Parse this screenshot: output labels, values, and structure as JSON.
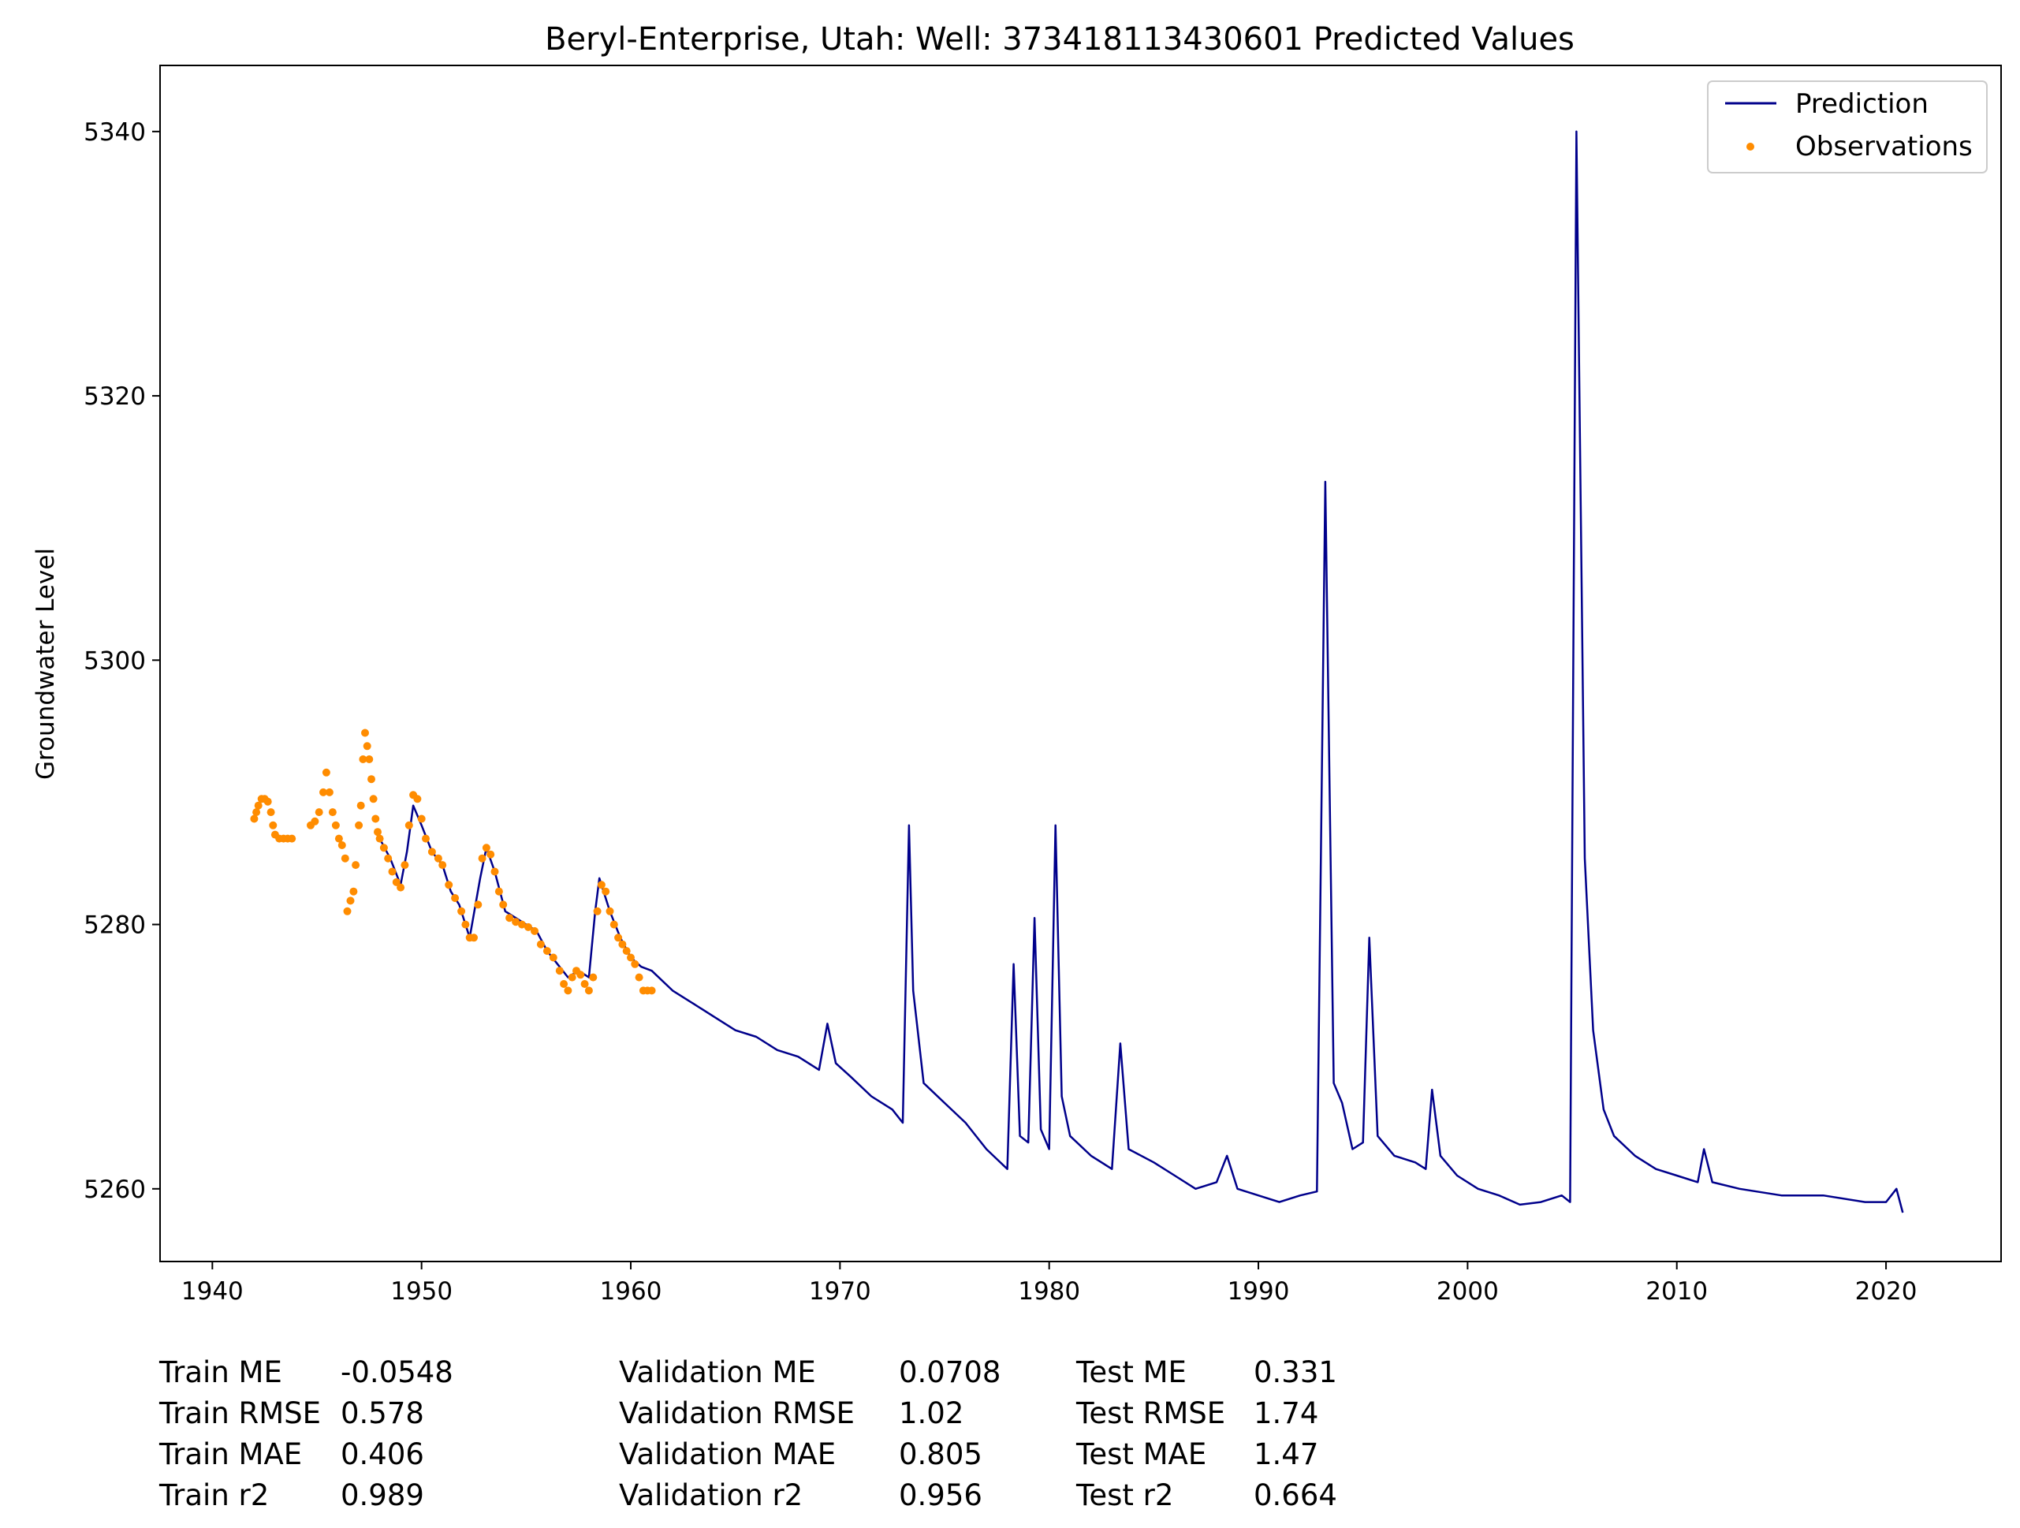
{
  "chart_data": {
    "type": "line",
    "title": "Beryl-Enterprise, Utah: Well: 373418113430601 Predicted Values",
    "xlabel": "",
    "ylabel": "Groundwater Level",
    "xlim": [
      1937.5,
      2025.5
    ],
    "ylim": [
      5254.5,
      5345
    ],
    "x_ticks": [
      1940,
      1950,
      1960,
      1970,
      1980,
      1990,
      2000,
      2010,
      2020
    ],
    "y_ticks": [
      5260,
      5280,
      5300,
      5320,
      5340
    ],
    "legend": {
      "placement": "top-right",
      "entries": [
        "Prediction",
        "Observations"
      ]
    },
    "colors": {
      "prediction": "#00008b",
      "observations": "#ff8c00",
      "axis": "#000000"
    },
    "series": [
      {
        "name": "Prediction",
        "style": "line",
        "points": [
          [
            1948.0,
            5286.5
          ],
          [
            1948.5,
            5285.0
          ],
          [
            1949.0,
            5283.0
          ],
          [
            1949.3,
            5285.5
          ],
          [
            1949.6,
            5289.0
          ],
          [
            1950.0,
            5287.5
          ],
          [
            1950.5,
            5285.5
          ],
          [
            1951.0,
            5284.5
          ],
          [
            1951.4,
            5282.5
          ],
          [
            1951.8,
            5281.5
          ],
          [
            1952.3,
            5279.0
          ],
          [
            1952.8,
            5283.5
          ],
          [
            1953.1,
            5285.8
          ],
          [
            1953.5,
            5284.0
          ],
          [
            1954.0,
            5281.0
          ],
          [
            1954.5,
            5280.5
          ],
          [
            1955.0,
            5280.0
          ],
          [
            1955.5,
            5279.5
          ],
          [
            1956.0,
            5278.0
          ],
          [
            1956.5,
            5277.0
          ],
          [
            1957.0,
            5276.0
          ],
          [
            1957.5,
            5276.5
          ],
          [
            1958.0,
            5276.0
          ],
          [
            1958.3,
            5281.0
          ],
          [
            1958.5,
            5283.5
          ],
          [
            1959.0,
            5281.0
          ],
          [
            1959.5,
            5279.0
          ],
          [
            1960.0,
            5277.5
          ],
          [
            1960.5,
            5276.8
          ],
          [
            1961.0,
            5276.5
          ],
          [
            1962.0,
            5275.0
          ],
          [
            1963.0,
            5274.0
          ],
          [
            1964.0,
            5273.0
          ],
          [
            1965.0,
            5272.0
          ],
          [
            1966.0,
            5271.5
          ],
          [
            1967.0,
            5270.5
          ],
          [
            1968.0,
            5270.0
          ],
          [
            1969.0,
            5269.0
          ],
          [
            1969.4,
            5272.5
          ],
          [
            1969.8,
            5269.5
          ],
          [
            1970.5,
            5268.5
          ],
          [
            1971.5,
            5267.0
          ],
          [
            1972.5,
            5266.0
          ],
          [
            1973.0,
            5265.0
          ],
          [
            1973.3,
            5287.5
          ],
          [
            1973.5,
            5275.0
          ],
          [
            1974.0,
            5268.0
          ],
          [
            1975.0,
            5266.5
          ],
          [
            1976.0,
            5265.0
          ],
          [
            1977.0,
            5263.0
          ],
          [
            1978.0,
            5261.5
          ],
          [
            1978.3,
            5277.0
          ],
          [
            1978.6,
            5264.0
          ],
          [
            1979.0,
            5263.5
          ],
          [
            1979.3,
            5280.5
          ],
          [
            1979.6,
            5264.5
          ],
          [
            1980.0,
            5263.0
          ],
          [
            1980.3,
            5287.5
          ],
          [
            1980.6,
            5267.0
          ],
          [
            1981.0,
            5264.0
          ],
          [
            1982.0,
            5262.5
          ],
          [
            1983.0,
            5261.5
          ],
          [
            1983.4,
            5271.0
          ],
          [
            1983.8,
            5263.0
          ],
          [
            1985.0,
            5262.0
          ],
          [
            1986.0,
            5261.0
          ],
          [
            1987.0,
            5260.0
          ],
          [
            1988.0,
            5260.5
          ],
          [
            1988.5,
            5262.5
          ],
          [
            1989.0,
            5260.0
          ],
          [
            1990.0,
            5259.5
          ],
          [
            1991.0,
            5259.0
          ],
          [
            1992.0,
            5259.5
          ],
          [
            1992.8,
            5259.8
          ],
          [
            1993.2,
            5313.5
          ],
          [
            1993.6,
            5268.0
          ],
          [
            1994.0,
            5266.5
          ],
          [
            1994.5,
            5263.0
          ],
          [
            1995.0,
            5263.5
          ],
          [
            1995.3,
            5279.0
          ],
          [
            1995.7,
            5264.0
          ],
          [
            1996.5,
            5262.5
          ],
          [
            1997.5,
            5262.0
          ],
          [
            1998.0,
            5261.5
          ],
          [
            1998.3,
            5267.5
          ],
          [
            1998.7,
            5262.5
          ],
          [
            1999.5,
            5261.0
          ],
          [
            2000.5,
            5260.0
          ],
          [
            2001.5,
            5259.5
          ],
          [
            2002.5,
            5258.8
          ],
          [
            2003.5,
            5259.0
          ],
          [
            2004.5,
            5259.5
          ],
          [
            2004.9,
            5259.0
          ],
          [
            2005.2,
            5340.0
          ],
          [
            2005.6,
            5285.0
          ],
          [
            2006.0,
            5272.0
          ],
          [
            2006.5,
            5266.0
          ],
          [
            2007.0,
            5264.0
          ],
          [
            2008.0,
            5262.5
          ],
          [
            2009.0,
            5261.5
          ],
          [
            2010.0,
            5261.0
          ],
          [
            2011.0,
            5260.5
          ],
          [
            2011.3,
            5263.0
          ],
          [
            2011.7,
            5260.5
          ],
          [
            2013.0,
            5260.0
          ],
          [
            2015.0,
            5259.5
          ],
          [
            2017.0,
            5259.5
          ],
          [
            2019.0,
            5259.0
          ],
          [
            2020.0,
            5259.0
          ],
          [
            2020.5,
            5260.0
          ],
          [
            2020.8,
            5258.2
          ]
        ]
      },
      {
        "name": "Observations",
        "style": "scatter",
        "points": [
          [
            1942.0,
            5288.0
          ],
          [
            1942.1,
            5288.5
          ],
          [
            1942.2,
            5289.0
          ],
          [
            1942.35,
            5289.5
          ],
          [
            1942.5,
            5289.5
          ],
          [
            1942.65,
            5289.3
          ],
          [
            1942.8,
            5288.5
          ],
          [
            1942.9,
            5287.5
          ],
          [
            1943.0,
            5286.8
          ],
          [
            1943.2,
            5286.5
          ],
          [
            1943.4,
            5286.5
          ],
          [
            1943.6,
            5286.5
          ],
          [
            1943.8,
            5286.5
          ],
          [
            1944.7,
            5287.5
          ],
          [
            1944.9,
            5287.8
          ],
          [
            1945.1,
            5288.5
          ],
          [
            1945.3,
            5290.0
          ],
          [
            1945.45,
            5291.5
          ],
          [
            1945.6,
            5290.0
          ],
          [
            1945.75,
            5288.5
          ],
          [
            1945.9,
            5287.5
          ],
          [
            1946.05,
            5286.5
          ],
          [
            1946.2,
            5286.0
          ],
          [
            1946.35,
            5285.0
          ],
          [
            1946.45,
            5281.0
          ],
          [
            1946.6,
            5281.8
          ],
          [
            1946.75,
            5282.5
          ],
          [
            1946.85,
            5284.5
          ],
          [
            1947.0,
            5287.5
          ],
          [
            1947.1,
            5289.0
          ],
          [
            1947.2,
            5292.5
          ],
          [
            1947.3,
            5294.5
          ],
          [
            1947.4,
            5293.5
          ],
          [
            1947.5,
            5292.5
          ],
          [
            1947.6,
            5291.0
          ],
          [
            1947.7,
            5289.5
          ],
          [
            1947.8,
            5288.0
          ],
          [
            1947.9,
            5287.0
          ],
          [
            1948.0,
            5286.5
          ],
          [
            1948.2,
            5285.8
          ],
          [
            1948.4,
            5285.0
          ],
          [
            1948.6,
            5284.0
          ],
          [
            1948.8,
            5283.2
          ],
          [
            1949.0,
            5282.8
          ],
          [
            1949.2,
            5284.5
          ],
          [
            1949.4,
            5287.5
          ],
          [
            1949.6,
            5289.8
          ],
          [
            1949.8,
            5289.5
          ],
          [
            1950.0,
            5288.0
          ],
          [
            1950.2,
            5286.5
          ],
          [
            1950.5,
            5285.5
          ],
          [
            1950.8,
            5285.0
          ],
          [
            1951.0,
            5284.5
          ],
          [
            1951.3,
            5283.0
          ],
          [
            1951.6,
            5282.0
          ],
          [
            1951.9,
            5281.0
          ],
          [
            1952.1,
            5280.0
          ],
          [
            1952.3,
            5279.0
          ],
          [
            1952.5,
            5279.0
          ],
          [
            1952.7,
            5281.5
          ],
          [
            1952.9,
            5285.0
          ],
          [
            1953.1,
            5285.8
          ],
          [
            1953.3,
            5285.3
          ],
          [
            1953.5,
            5284.0
          ],
          [
            1953.7,
            5282.5
          ],
          [
            1953.9,
            5281.5
          ],
          [
            1954.2,
            5280.5
          ],
          [
            1954.5,
            5280.2
          ],
          [
            1954.8,
            5280.0
          ],
          [
            1955.1,
            5279.8
          ],
          [
            1955.4,
            5279.5
          ],
          [
            1955.7,
            5278.5
          ],
          [
            1956.0,
            5278.0
          ],
          [
            1956.3,
            5277.5
          ],
          [
            1956.6,
            5276.5
          ],
          [
            1956.8,
            5275.5
          ],
          [
            1957.0,
            5275.0
          ],
          [
            1957.2,
            5276.0
          ],
          [
            1957.4,
            5276.5
          ],
          [
            1957.6,
            5276.2
          ],
          [
            1957.8,
            5275.5
          ],
          [
            1958.0,
            5275.0
          ],
          [
            1958.2,
            5276.0
          ],
          [
            1958.4,
            5281.0
          ],
          [
            1958.6,
            5283.0
          ],
          [
            1958.8,
            5282.5
          ],
          [
            1959.0,
            5281.0
          ],
          [
            1959.2,
            5280.0
          ],
          [
            1959.4,
            5279.0
          ],
          [
            1959.6,
            5278.5
          ],
          [
            1959.8,
            5278.0
          ],
          [
            1960.0,
            5277.5
          ],
          [
            1960.2,
            5277.0
          ],
          [
            1960.4,
            5276.0
          ],
          [
            1960.6,
            5275.0
          ],
          [
            1960.8,
            5275.0
          ],
          [
            1961.0,
            5275.0
          ]
        ]
      }
    ]
  },
  "metrics": {
    "train": [
      {
        "label": "Train ME",
        "value": "-0.0548"
      },
      {
        "label": "Train RMSE",
        "value": "0.578"
      },
      {
        "label": "Train MAE",
        "value": "0.406"
      },
      {
        "label": "Train r2",
        "value": "0.989"
      }
    ],
    "validation": [
      {
        "label": "Validation ME",
        "value": "0.0708"
      },
      {
        "label": "Validation RMSE",
        "value": "1.02"
      },
      {
        "label": "Validation MAE",
        "value": "0.805"
      },
      {
        "label": "Validation r2",
        "value": "0.956"
      }
    ],
    "test": [
      {
        "label": "Test ME",
        "value": "0.331"
      },
      {
        "label": "Test RMSE",
        "value": "1.74"
      },
      {
        "label": "Test MAE",
        "value": "1.47"
      },
      {
        "label": "Test r2",
        "value": "0.664"
      }
    ]
  }
}
